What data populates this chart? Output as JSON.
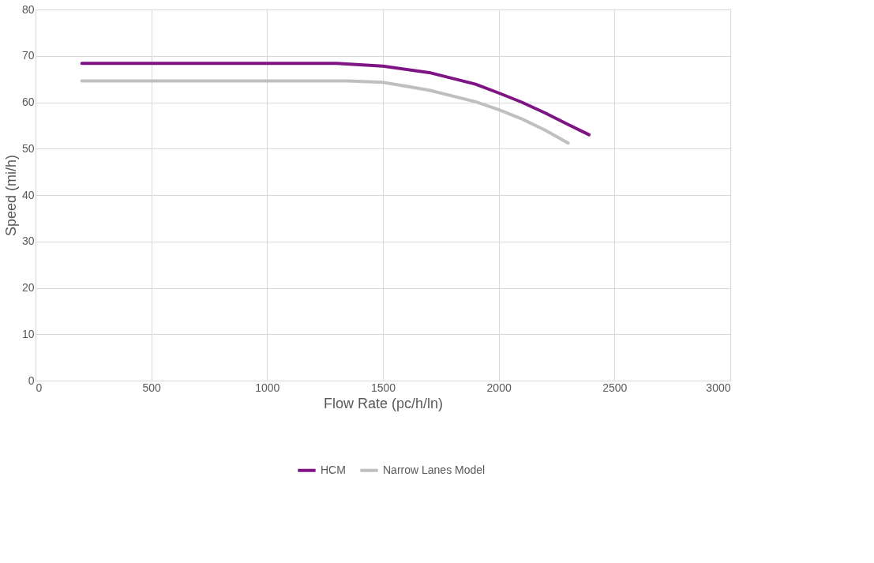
{
  "chart_data": {
    "type": "line",
    "xlabel": "Flow Rate (pc/h/ln)",
    "ylabel": "Speed (mi/h)",
    "xlim": [
      0,
      3000
    ],
    "xticks": [
      0,
      500,
      1000,
      1500,
      2000,
      2500,
      3000
    ],
    "ylim": [
      0,
      80
    ],
    "yticks": [
      0,
      10,
      20,
      30,
      40,
      50,
      60,
      70,
      80
    ],
    "grid": true,
    "legend": "bottom",
    "marker": "none",
    "line_style": "solid",
    "series": [
      {
        "name": "HCM",
        "color": "#7f1484",
        "x": [
          200,
          1300,
          1500,
          1700,
          1900,
          2000,
          2100,
          2200,
          2300,
          2390
        ],
        "values": [
          68.4,
          68.4,
          67.8,
          66.4,
          63.9,
          62.0,
          60.0,
          57.7,
          55.2,
          53.0
        ]
      },
      {
        "name": "Narrow Lanes Model",
        "color": "#bfbfbf",
        "x": [
          200,
          1350,
          1500,
          1700,
          1900,
          2000,
          2100,
          2200,
          2300
        ],
        "values": [
          64.6,
          64.6,
          64.3,
          62.6,
          60.1,
          58.4,
          56.4,
          54.0,
          51.2
        ]
      }
    ]
  }
}
